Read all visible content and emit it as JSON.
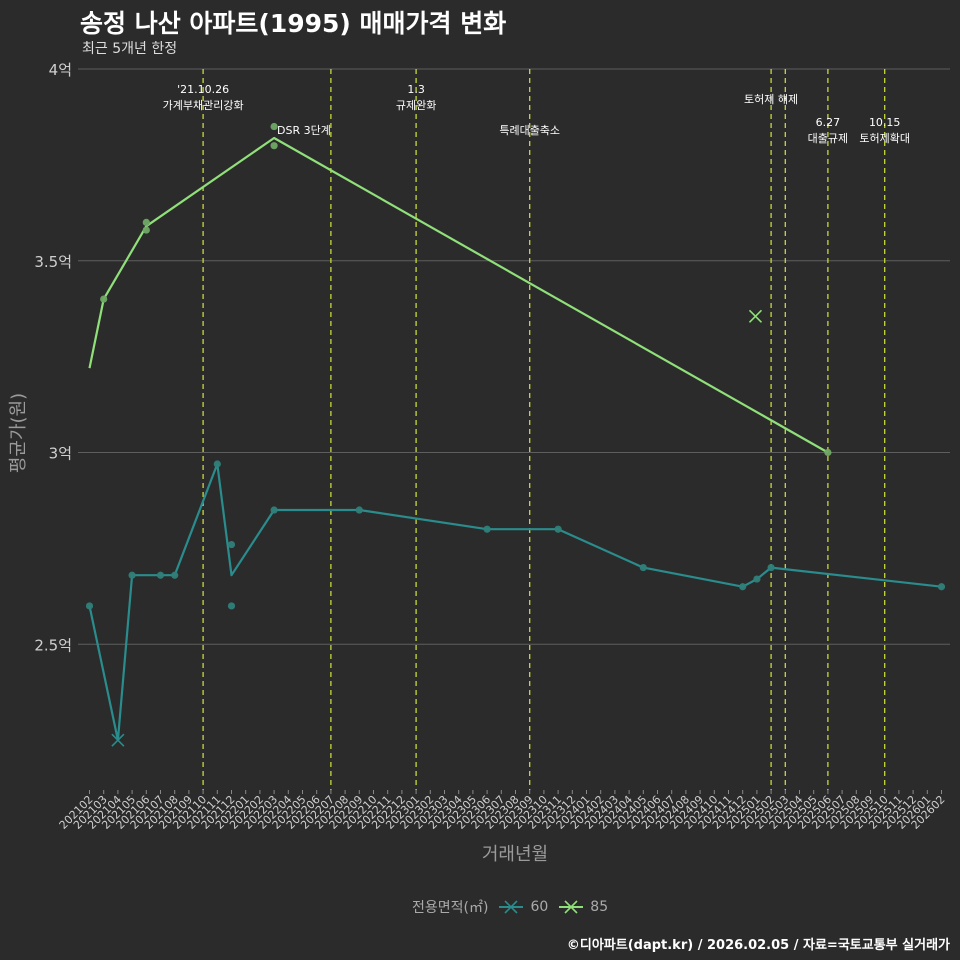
{
  "page": {
    "title": "송정 나산 아파트(1995) 매매가격 변화",
    "subtitle": "최근 5개년 한정",
    "caption": "©디아파트(dapt.kr) / 2026.02.05 / 자료=국토교통부 실거래가"
  },
  "colors": {
    "background": "#2b2b2b",
    "grid": "#5e5e5e",
    "s60": "#2a8c8c",
    "s60_point": "#2f7f7a",
    "s85": "#90e07a",
    "s85_point": "#6fa865",
    "event_line": "#c8d93a"
  },
  "chart_data": {
    "type": "line",
    "title": "송정 나산 아파트(1995) 매매가격 변화",
    "xlabel": "거래년월",
    "ylabel": "평균가(원)",
    "ylim": [
      2.12,
      4.0
    ],
    "yticks": [
      {
        "value": 2.5,
        "label": "2.5억"
      },
      {
        "value": 3.0,
        "label": "3억"
      },
      {
        "value": 3.5,
        "label": "3.5억"
      },
      {
        "value": 4.0,
        "label": "4억"
      }
    ],
    "x_months": [
      "202102",
      "202103",
      "202104",
      "202105",
      "202106",
      "202107",
      "202108",
      "202109",
      "202110",
      "202111",
      "202112",
      "202201",
      "202202",
      "202203",
      "202204",
      "202205",
      "202206",
      "202207",
      "202208",
      "202209",
      "202210",
      "202211",
      "202212",
      "202301",
      "202302",
      "202303",
      "202304",
      "202305",
      "202306",
      "202307",
      "202308",
      "202309",
      "202310",
      "202311",
      "202312",
      "202401",
      "202402",
      "202403",
      "202404",
      "202405",
      "202406",
      "202407",
      "202408",
      "202409",
      "202410",
      "202411",
      "202412",
      "202501",
      "202502",
      "202503",
      "202504",
      "202505",
      "202506",
      "202507",
      "202508",
      "202509",
      "202510",
      "202511",
      "202512",
      "202601",
      "202602"
    ],
    "legend_title": "전용면적(㎡)",
    "series": [
      {
        "name": "60",
        "color_key": "s60",
        "line": [
          {
            "x": "202102",
            "y": 2.6
          },
          {
            "x": "202104",
            "y": 2.25
          },
          {
            "x": "202105",
            "y": 2.68
          },
          {
            "x": "202107",
            "y": 2.68
          },
          {
            "x": "202108",
            "y": 2.68
          },
          {
            "x": "202111",
            "y": 2.97
          },
          {
            "x": "202112",
            "y": 2.68
          },
          {
            "x": "202203",
            "y": 2.85
          },
          {
            "x": "202209",
            "y": 2.85
          },
          {
            "x": "202306",
            "y": 2.8
          },
          {
            "x": "202311",
            "y": 2.8
          },
          {
            "x": "202405",
            "y": 2.7
          },
          {
            "x": "202412",
            "y": 2.65
          },
          {
            "x": "202501",
            "y": 2.67
          },
          {
            "x": "202502",
            "y": 2.7
          },
          {
            "x": "202602",
            "y": 2.65
          }
        ],
        "points": [
          {
            "x": "202102",
            "y": 2.6
          },
          {
            "x": "202105",
            "y": 2.68
          },
          {
            "x": "202107",
            "y": 2.68
          },
          {
            "x": "202108",
            "y": 2.68
          },
          {
            "x": "202111",
            "y": 2.97
          },
          {
            "x": "202112",
            "y": 2.76
          },
          {
            "x": "202112",
            "y": 2.6
          },
          {
            "x": "202203",
            "y": 2.85
          },
          {
            "x": "202209",
            "y": 2.85
          },
          {
            "x": "202306",
            "y": 2.8
          },
          {
            "x": "202311",
            "y": 2.8
          },
          {
            "x": "202405",
            "y": 2.7
          },
          {
            "x": "202412",
            "y": 2.65
          },
          {
            "x": "202501",
            "y": 2.67
          },
          {
            "x": "202502",
            "y": 2.7
          },
          {
            "x": "202602",
            "y": 2.65
          }
        ],
        "crosses": [
          {
            "x": "202104",
            "y": 2.25
          }
        ]
      },
      {
        "name": "85",
        "color_key": "s85",
        "line": [
          {
            "x": "202102",
            "y": 3.22
          },
          {
            "x": "202103",
            "y": 3.4
          },
          {
            "x": "202106",
            "y": 3.59
          },
          {
            "x": "202203",
            "y": 3.82
          },
          {
            "x": "202506",
            "y": 3.0
          }
        ],
        "points": [
          {
            "x": "202103",
            "y": 3.4
          },
          {
            "x": "202106",
            "y": 3.6
          },
          {
            "x": "202106",
            "y": 3.58
          },
          {
            "x": "202203",
            "y": 3.85
          },
          {
            "x": "202203",
            "y": 3.8
          },
          {
            "x": "202506",
            "y": 3.0
          }
        ],
        "crosses": [
          {
            "x": "202501",
            "y": 3.355,
            "offset": -0.1
          }
        ]
      }
    ],
    "events": [
      {
        "x": "202110",
        "labels": [
          "'21.10.26",
          "가계부채관리강화"
        ],
        "row": 1
      },
      {
        "x": "202207",
        "labels": [
          "DSR 3단계"
        ],
        "row": 2,
        "side": "left"
      },
      {
        "x": "202301",
        "labels": [
          "1.3",
          "규제완화"
        ],
        "row": 1
      },
      {
        "x": "202309",
        "labels": [
          "특례대출축소"
        ],
        "row": 2
      },
      {
        "x": "202502",
        "labels": [
          "토허제 해제"
        ],
        "row": 1,
        "offset": 0.0
      },
      {
        "x": "202503",
        "labels": [],
        "row": 1
      },
      {
        "x": "202506",
        "labels": [
          "6.27",
          "대출규제"
        ],
        "row": 3
      },
      {
        "x": "202510",
        "labels": [
          "10.15",
          "토허제확대"
        ],
        "row": 3
      }
    ]
  }
}
